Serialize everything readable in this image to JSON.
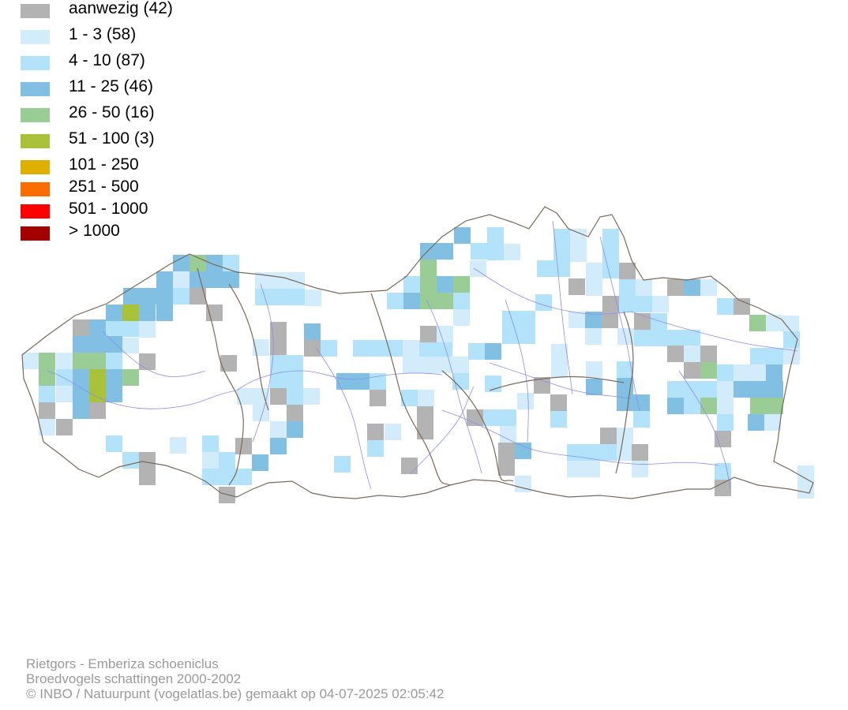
{
  "legend": {
    "items": [
      {
        "label": "aanwezig (42)",
        "color": "#b3b3b3"
      },
      {
        "label": "1 - 3 (58)",
        "color": "#d3ecfb"
      },
      {
        "label": "4 - 10 (87)",
        "color": "#b3e3fb"
      },
      {
        "label": "11 - 25 (46)",
        "color": "#82c0e3"
      },
      {
        "label": "26 - 50 (16)",
        "color": "#9acd95"
      },
      {
        "label": "51 - 100 (3)",
        "color": "#a9c23a"
      },
      {
        "label": "101 - 250",
        "color": "#e0b000"
      },
      {
        "label": "251 - 500",
        "color": "#fa6b00"
      },
      {
        "label": "501 - 1000",
        "color": "#ff0000"
      },
      {
        "label": "> 1000",
        "color": "#a50000"
      }
    ]
  },
  "map": {
    "border_color": "#7a6a5a",
    "river_color": "#8c8cf0"
  },
  "footer": {
    "line1": "Rietgors - Emberiza schoeniclus",
    "line2": "Broedvogels schattingen 2000-2002",
    "line3": "© INBO / Natuurpunt (vogelatlas.be) gemaakt op 04-07-2025 02:05:42",
    "color": "#9a9a9a"
  }
}
